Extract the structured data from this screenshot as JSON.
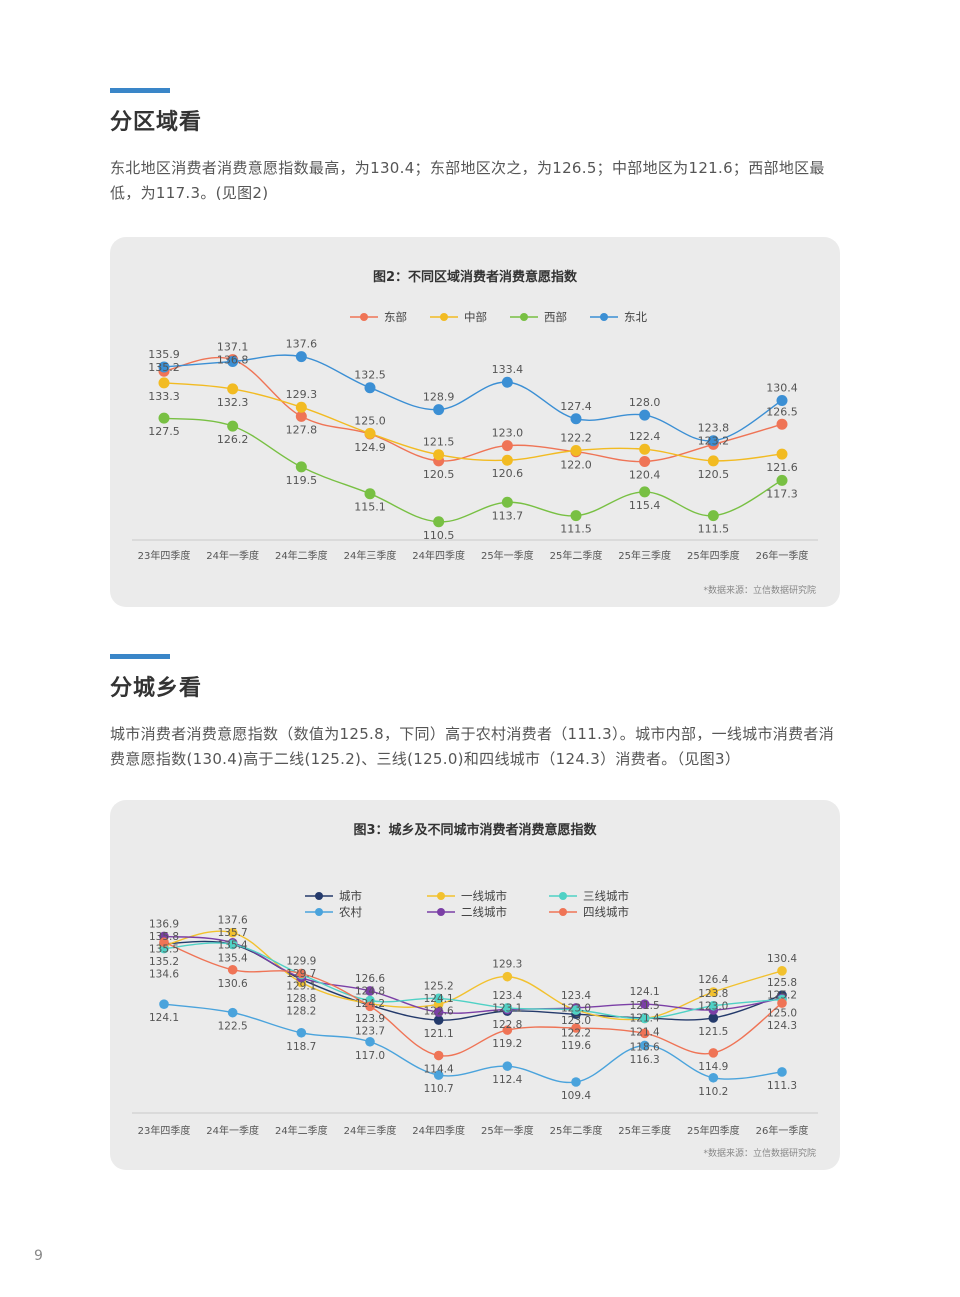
{
  "section1": {
    "title": "分区域看",
    "paragraph": "东北地区消费者消费意愿指数最高，为130.4；东部地区次之，为126.5；中部地区为121.6；西部地区最低，为117.3。(见图2)"
  },
  "section2": {
    "title": "分城乡看",
    "paragraph": "城市消费者消费意愿指数（数值为125.8，下同）高于农村消费者（111.3）。城市内部，一线城市消费者消费意愿指数(130.4)高于二线(125.2)、三线(125.0)和四线城市（124.3）消费者。（见图3）"
  },
  "page_number": "9",
  "chart_data": [
    {
      "type": "line",
      "title": "图2：不同区域消费者消费意愿指数",
      "source": "*数据来源：立信数据研究院",
      "categories": [
        "23年四季度",
        "24年一季度",
        "24年二季度",
        "24年三季度",
        "24年四季度",
        "25年一季度",
        "25年二季度",
        "25年三季度",
        "25年四季度",
        "26年一季度"
      ],
      "ylim": [
        108,
        140
      ],
      "grid": false,
      "legend_position": "top",
      "series": [
        {
          "name": "东部",
          "color": "#ef7456",
          "values": [
            135.2,
            137.1,
            127.8,
            124.9,
            120.5,
            123.0,
            122.0,
            120.4,
            123.2,
            126.5
          ]
        },
        {
          "name": "中部",
          "color": "#f2bb22",
          "values": [
            133.3,
            132.3,
            129.3,
            125.0,
            121.5,
            120.6,
            122.2,
            122.4,
            120.5,
            121.6
          ]
        },
        {
          "name": "西部",
          "color": "#78c043",
          "values": [
            127.5,
            126.2,
            119.5,
            115.1,
            110.5,
            113.7,
            111.5,
            115.4,
            111.5,
            117.3
          ]
        },
        {
          "name": "东北",
          "color": "#3b8fd4",
          "values": [
            135.9,
            136.8,
            137.6,
            132.5,
            128.9,
            133.4,
            127.4,
            128.0,
            123.8,
            130.4
          ]
        }
      ]
    },
    {
      "type": "line",
      "title": "图3：城乡及不同城市消费者消费意愿指数",
      "source": "*数据来源：立信数据研究院",
      "categories": [
        "23年四季度",
        "24年一季度",
        "24年二季度",
        "24年三季度",
        "24年四季度",
        "25年一季度",
        "25年二季度",
        "25年三季度",
        "25年四季度",
        "26年一季度"
      ],
      "ylim": [
        106,
        140
      ],
      "grid": false,
      "legend_position": "top",
      "series": [
        {
          "name": "城市",
          "color": "#243a6b",
          "values": [
            135.5,
            135.4,
            128.8,
            123.9,
            121.1,
            122.8,
            122.2,
            121.5,
            121.5,
            125.8
          ]
        },
        {
          "name": "农村",
          "color": "#4aa3dc",
          "values": [
            124.1,
            122.5,
            118.7,
            117.0,
            110.7,
            112.4,
            109.4,
            116.3,
            110.2,
            111.3
          ]
        },
        {
          "name": "一线城市",
          "color": "#f2c12e",
          "values": [
            135.2,
            137.6,
            128.2,
            124.2,
            124.1,
            129.3,
            123.0,
            121.4,
            126.4,
            130.4
          ]
        },
        {
          "name": "二线城市",
          "color": "#7b3fa6",
          "values": [
            136.9,
            135.7,
            129.1,
            126.6,
            122.6,
            123.1,
            123.4,
            124.1,
            123.0,
            125.2
          ]
        },
        {
          "name": "三线城市",
          "color": "#4fd1c5",
          "values": [
            134.6,
            135.4,
            129.7,
            124.8,
            125.2,
            123.4,
            123.0,
            121.4,
            123.8,
            125.0
          ]
        },
        {
          "name": "四线城市",
          "color": "#ef7456",
          "values": [
            135.8,
            130.6,
            129.9,
            123.7,
            114.4,
            119.2,
            119.6,
            118.6,
            114.9,
            124.3
          ]
        }
      ]
    }
  ]
}
